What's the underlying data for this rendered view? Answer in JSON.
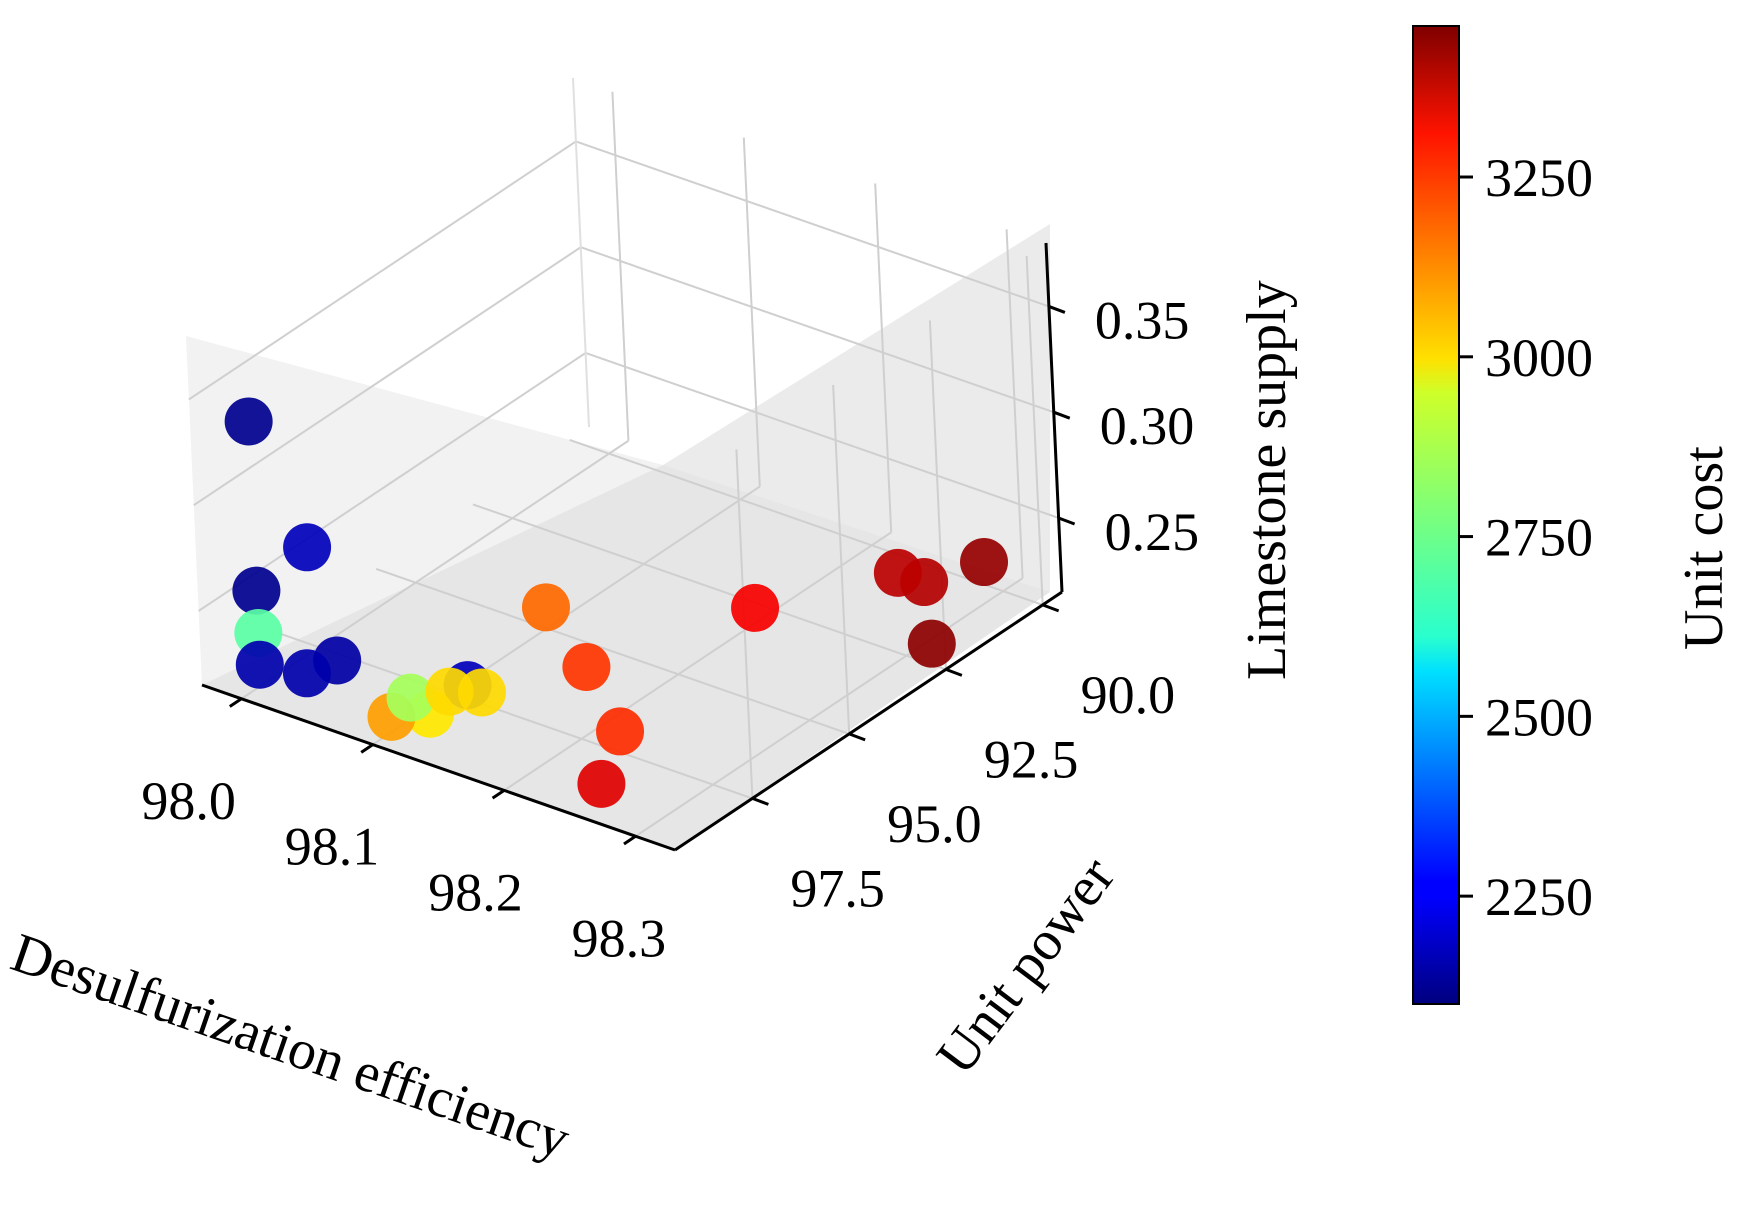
{
  "chart_data": {
    "type": "scatter",
    "projection": "3d",
    "title": "",
    "xlabel": "Desulfurization efficiency",
    "ylabel": "Unit power",
    "zlabel": "Limestone supply",
    "colorbar_label": "Unit cost",
    "colormap": "jet",
    "xlim": [
      97.97,
      98.33
    ],
    "ylim": [
      89.5,
      99.5
    ],
    "zlim": [
      0.215,
      0.38
    ],
    "clim": [
      2100,
      3460
    ],
    "x_ticks": [
      98.0,
      98.1,
      98.2,
      98.3
    ],
    "x_tick_labels": [
      "98.0",
      "98.1",
      "98.2",
      "98.3"
    ],
    "y_ticks": [
      90.0,
      92.5,
      95.0,
      97.5
    ],
    "y_tick_labels": [
      "90.0",
      "92.5",
      "95.0",
      "97.5"
    ],
    "z_ticks": [
      0.25,
      0.3,
      0.35
    ],
    "z_tick_labels": [
      "0.25",
      "0.30",
      "0.35"
    ],
    "colorbar_ticks": [
      2250,
      2500,
      2750,
      3000,
      3250
    ],
    "colorbar_tick_labels": [
      "2250",
      "2500",
      "2750",
      "3000",
      "3250"
    ],
    "grid": true,
    "points": [
      {
        "x": 98.0,
        "y": 99.0,
        "z": 0.34,
        "c": 2120
      },
      {
        "x": 98.05,
        "y": 99.3,
        "z": 0.295,
        "c": 2180
      },
      {
        "x": 98.16,
        "y": 99.0,
        "z": 0.25,
        "c": 2180
      },
      {
        "x": 98.06,
        "y": 99.0,
        "z": 0.24,
        "c": 2150
      },
      {
        "x": 98.0,
        "y": 99.0,
        "z": 0.26,
        "c": 2120
      },
      {
        "x": 98.03,
        "y": 98.8,
        "z": 0.225,
        "c": 2160
      },
      {
        "x": 98.0,
        "y": 99.0,
        "z": 0.24,
        "c": 2730
      },
      {
        "x": 98.0,
        "y": 99.0,
        "z": 0.225,
        "c": 2160
      },
      {
        "x": 98.1,
        "y": 98.5,
        "z": 0.225,
        "c": 2830
      },
      {
        "x": 98.13,
        "y": 99.0,
        "z": 0.23,
        "c": 2980
      },
      {
        "x": 98.14,
        "y": 98.0,
        "z": 0.23,
        "c": 3000
      },
      {
        "x": 98.1,
        "y": 99.0,
        "z": 0.222,
        "c": 3080
      },
      {
        "x": 98.115,
        "y": 98.0,
        "z": 0.225,
        "c": 3000
      },
      {
        "x": 98.1,
        "y": 95.0,
        "z": 0.225,
        "c": 3150
      },
      {
        "x": 98.16,
        "y": 96.0,
        "z": 0.222,
        "c": 3220
      },
      {
        "x": 98.23,
        "y": 97.5,
        "z": 0.225,
        "c": 3230
      },
      {
        "x": 98.26,
        "y": 99.0,
        "z": 0.225,
        "c": 3330
      },
      {
        "x": 98.2,
        "y": 93.0,
        "z": 0.222,
        "c": 3300
      },
      {
        "x": 98.25,
        "y": 91.0,
        "z": 0.225,
        "c": 3380
      },
      {
        "x": 98.27,
        "y": 91.0,
        "z": 0.225,
        "c": 3390
      },
      {
        "x": 98.32,
        "y": 92.5,
        "z": 0.225,
        "c": 3440
      },
      {
        "x": 98.28,
        "y": 89.8,
        "z": 0.222,
        "c": 3430
      }
    ]
  }
}
